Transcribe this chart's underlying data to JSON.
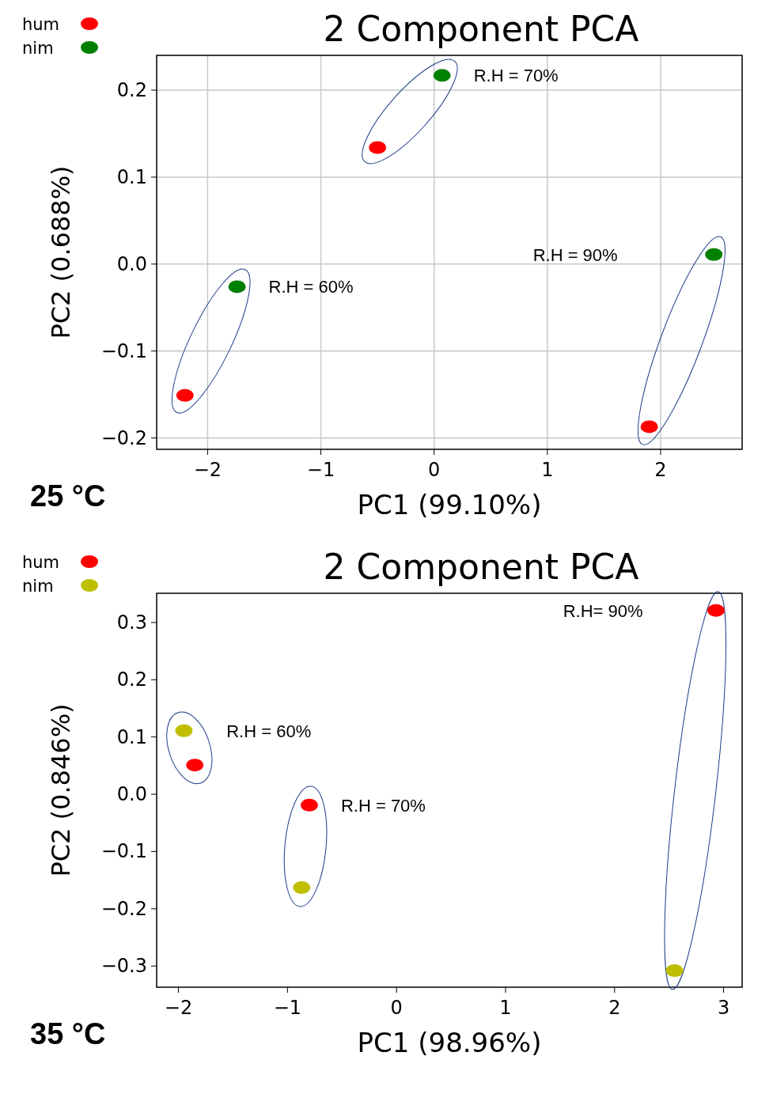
{
  "chart_data": [
    {
      "type": "scatter",
      "title": "2 Component PCA",
      "xlabel": "PC1 (99.10%)",
      "ylabel": "PC2 (0.688%)",
      "legend": "top left",
      "grid": true,
      "marker": "circle",
      "xlim": [
        -2.45,
        2.72
      ],
      "ylim": [
        -0.213,
        0.24
      ],
      "xticks": [
        -2,
        -1,
        0,
        1,
        2
      ],
      "yticks": [
        -0.2,
        -0.1,
        {
          "value": 0,
          "label": "0.0"
        },
        0.1,
        0.2
      ],
      "series": [
        {
          "name": "hum",
          "color": "#ff0000",
          "x": [
            -2.2,
            -0.5,
            1.9
          ],
          "values": [
            -0.151,
            0.134,
            -0.187
          ]
        },
        {
          "name": "nim",
          "color": "#008000",
          "x": [
            -1.74,
            0.07,
            2.47
          ],
          "values": [
            -0.026,
            0.217,
            0.011
          ]
        }
      ],
      "annotations": [
        "R.H = 60%",
        "R.H = 70%",
        "R.H = 90%",
        "25 °C"
      ]
    },
    {
      "type": "scatter",
      "title": "2 Component PCA",
      "xlabel": "PC1 (98.96%)",
      "ylabel": "PC2 (0.846%)",
      "legend": "top left",
      "grid": false,
      "marker": "circle",
      "xlim": [
        -2.2,
        3.17
      ],
      "ylim": [
        -0.337,
        0.351
      ],
      "xticks": [
        -2,
        -1,
        0,
        1,
        2,
        3
      ],
      "yticks": [
        -0.3,
        -0.2,
        -0.1,
        {
          "value": 0,
          "label": "0.0"
        },
        0.1,
        0.2,
        0.3
      ],
      "series": [
        {
          "name": "hum",
          "color": "#ff0000",
          "x": [
            -1.85,
            -0.8,
            2.93
          ],
          "values": [
            0.051,
            -0.019,
            0.321
          ]
        },
        {
          "name": "nim",
          "color": "#bfbf00",
          "x": [
            -1.95,
            -0.87,
            2.55
          ],
          "values": [
            0.111,
            -0.163,
            -0.308
          ]
        }
      ],
      "annotations": [
        "R.H = 60%",
        "R.H = 70%",
        "R.H= 90%",
        "35 °C"
      ]
    }
  ]
}
